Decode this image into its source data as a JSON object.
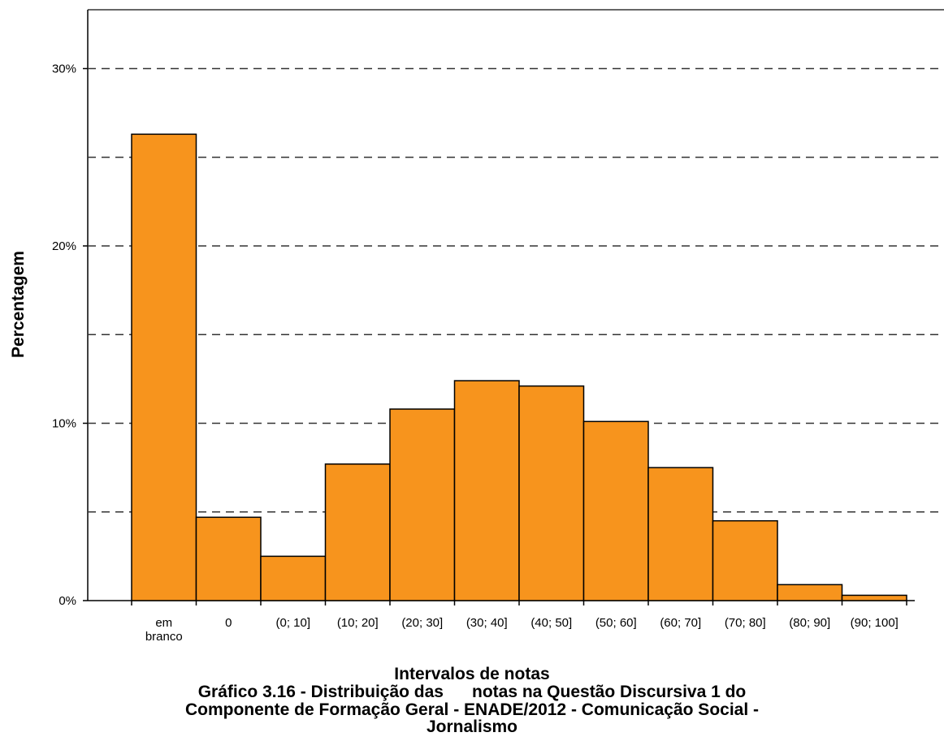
{
  "chart_data": {
    "type": "bar",
    "categories": [
      "em\nbranco",
      "0",
      "(0; 10]",
      "(10; 20]",
      "(20; 30]",
      "(30; 40]",
      "(40; 50]",
      "(50; 60]",
      "(60; 70]",
      "(70; 80]",
      "(80; 90]",
      "(90; 100]"
    ],
    "values": [
      26.3,
      4.7,
      2.5,
      7.7,
      10.8,
      12.4,
      12.1,
      10.1,
      7.5,
      4.5,
      0.9,
      0.3
    ],
    "xlabel": "Intervalos de notas",
    "ylabel": "Percentagem",
    "ylim": [
      0,
      33
    ],
    "yticks": [
      0,
      10,
      20,
      30
    ],
    "ytick_labels": [
      "0%",
      "10%",
      "20%",
      "30%"
    ],
    "gridlines": [
      5,
      10,
      15,
      20,
      25,
      30
    ],
    "grid": true,
    "bar_color": "#f7941d",
    "bar_edge_color": "#000000"
  },
  "caption": {
    "line1": "Gráfico 3.16 - Distribuição das      notas na Questão Discursiva 1 do",
    "line2": "Componente de Formação Geral - ENADE/2012 - Comunicação Social -",
    "line3": "Jornalismo"
  }
}
